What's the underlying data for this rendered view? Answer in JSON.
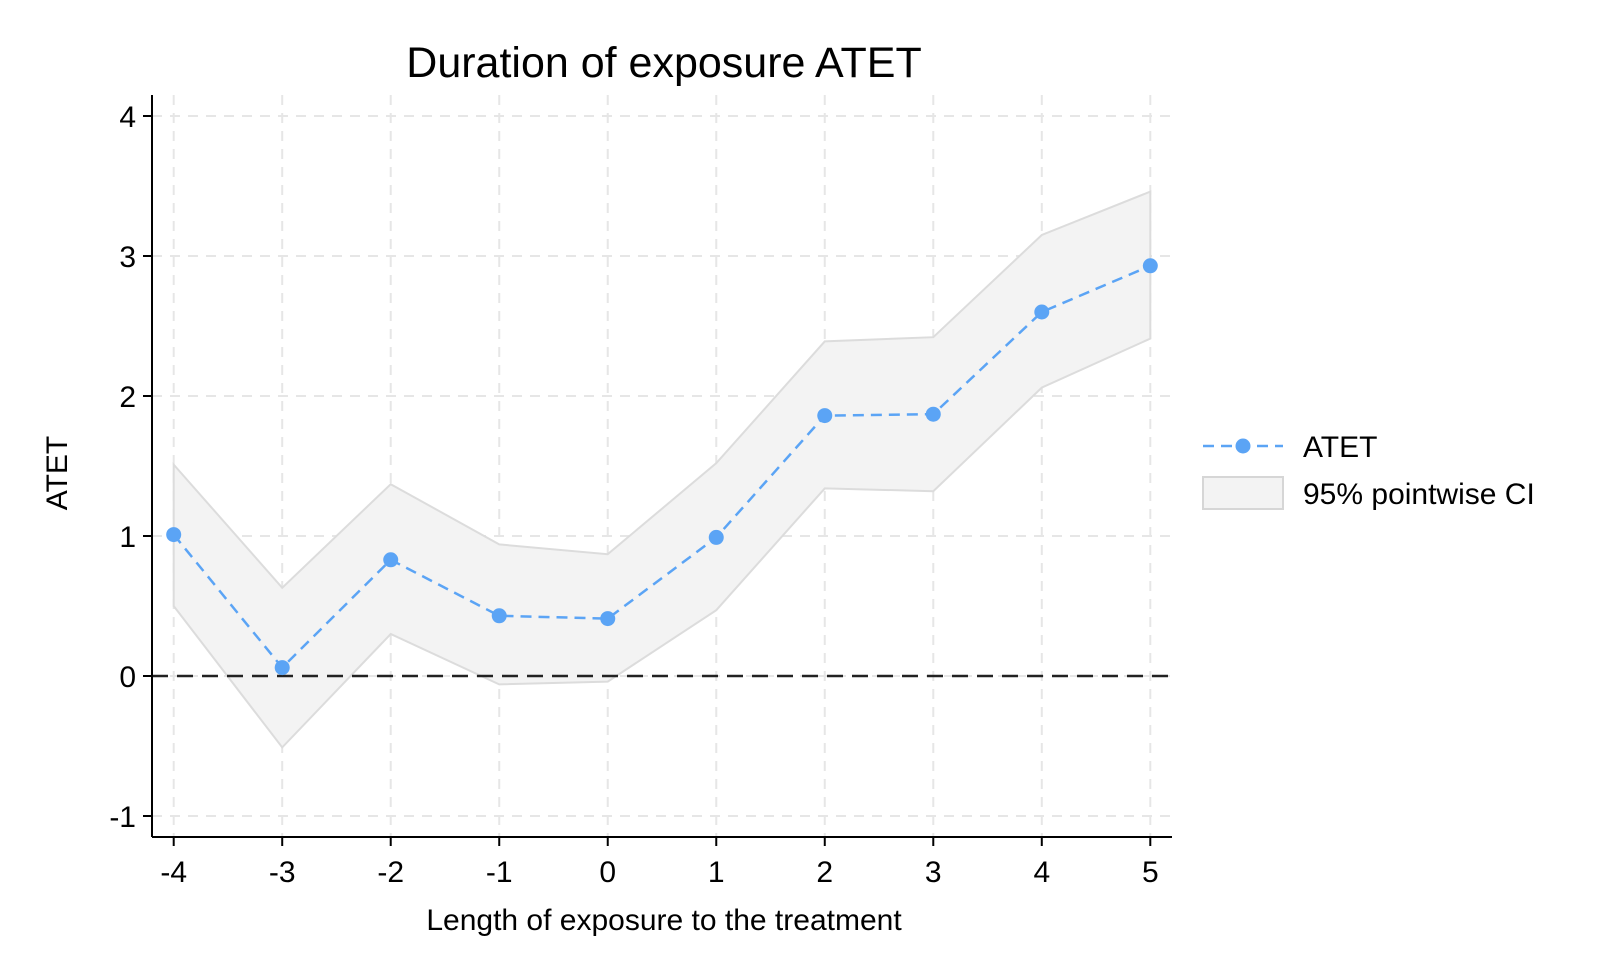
{
  "chart_data": {
    "type": "line",
    "title": "Duration of exposure ATET",
    "xlabel": "Length of exposure to the treatment",
    "ylabel": "ATET",
    "x": [
      -4,
      -3,
      -2,
      -1,
      0,
      1,
      2,
      3,
      4,
      5
    ],
    "x_tick_labels": [
      "-4",
      "-3",
      "-2",
      "-1",
      "0",
      "1",
      "2",
      "3",
      "4",
      "5"
    ],
    "y_ticks": [
      -1,
      0,
      1,
      2,
      3,
      4
    ],
    "y_tick_labels": [
      "-1",
      "0",
      "1",
      "2",
      "3",
      "4"
    ],
    "xlim": [
      -4.2,
      5.2
    ],
    "ylim": [
      -1.15,
      4.15
    ],
    "grid": true,
    "reference_line": 0,
    "legend_position": "right",
    "series": [
      {
        "name": "ATET",
        "kind": "line-with-markers",
        "style": "dashed",
        "color": "#5ba4f5",
        "values": [
          1.01,
          0.06,
          0.83,
          0.43,
          0.41,
          0.99,
          1.86,
          1.87,
          2.6,
          2.93
        ]
      },
      {
        "name": "95% pointwise CI",
        "kind": "band",
        "color": "#ececec",
        "lower": [
          0.5,
          -0.51,
          0.3,
          -0.06,
          -0.04,
          0.47,
          1.34,
          1.32,
          2.06,
          2.41
        ],
        "upper": [
          1.51,
          0.63,
          1.37,
          0.94,
          0.87,
          1.52,
          2.39,
          2.42,
          3.15,
          3.46
        ]
      }
    ]
  }
}
